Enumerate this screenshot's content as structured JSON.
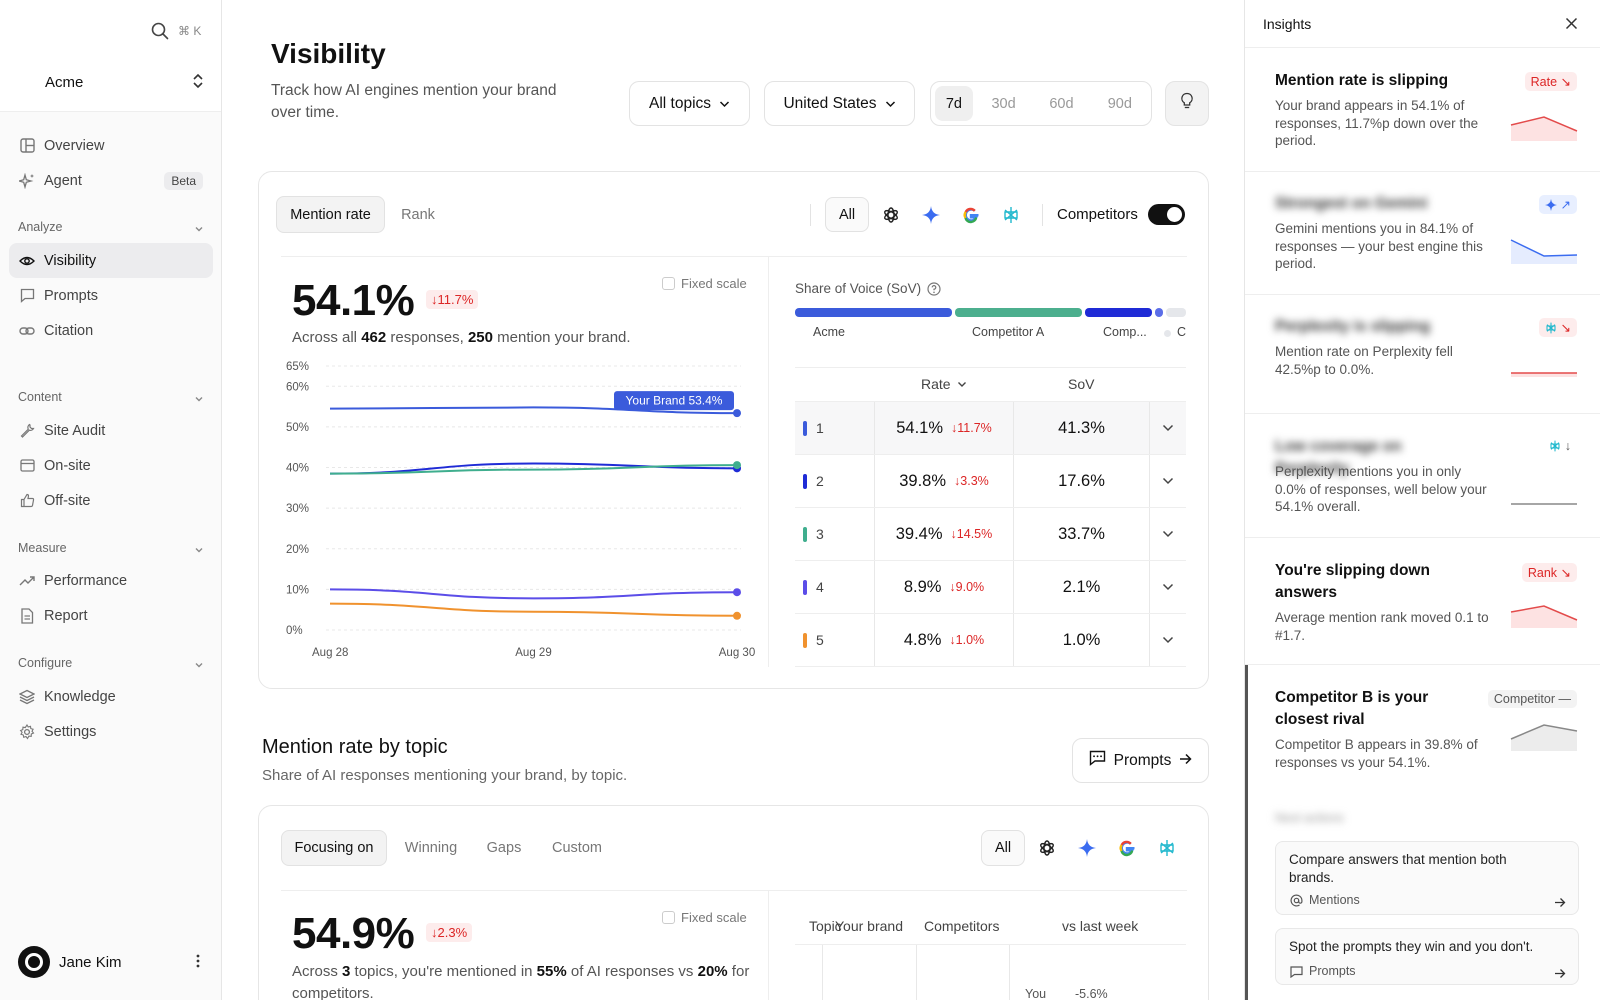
{
  "sidebar": {
    "search_shortcut": "⌘ K",
    "workspace": "Acme",
    "nav_top": [
      {
        "label": "Overview",
        "icon": "layout-icon"
      },
      {
        "label": "Agent",
        "icon": "sparkles-icon",
        "badge": "Beta"
      }
    ],
    "sections": [
      {
        "label": "Analyze",
        "items": [
          {
            "label": "Visibility",
            "icon": "eye-icon",
            "active": true
          },
          {
            "label": "Prompts",
            "icon": "message-icon"
          },
          {
            "label": "Citation",
            "icon": "link-icon"
          }
        ]
      },
      {
        "label": "Content",
        "items": [
          {
            "label": "Site Audit",
            "icon": "wrench-icon"
          },
          {
            "label": "On-site",
            "icon": "browser-icon"
          },
          {
            "label": "Off-site",
            "icon": "thumbs-up-icon"
          }
        ]
      },
      {
        "label": "Measure",
        "items": [
          {
            "label": "Performance",
            "icon": "trending-up-icon"
          },
          {
            "label": "Report",
            "icon": "file-icon"
          }
        ]
      },
      {
        "label": "Configure",
        "items": [
          {
            "label": "Knowledge",
            "icon": "layers-icon"
          },
          {
            "label": "Settings",
            "icon": "gear-icon"
          }
        ]
      }
    ],
    "user": "Jane Kim"
  },
  "header": {
    "title": "Visibility",
    "subtitle": "Track how AI engines mention your brand over time.",
    "topic_filter": "All topics",
    "country_filter": "United States",
    "ranges": [
      "7d",
      "30d",
      "60d",
      "90d"
    ],
    "active_range": "7d"
  },
  "visibility_card": {
    "tabs": [
      "Mention rate",
      "Rank"
    ],
    "active_tab": "Mention rate",
    "engine_all": "All",
    "engines": [
      "chatgpt-icon",
      "gemini-icon",
      "google-icon",
      "perplexity-icon"
    ],
    "competitors_label": "Competitors",
    "competitors_on": true,
    "big_value": "54.1%",
    "delta": "↓11.7%",
    "fixed_scale": "Fixed scale",
    "summary_pre": "Across all ",
    "summary_responses": "462",
    "summary_mid": " responses, ",
    "summary_mentions": "250",
    "summary_post": " mention your brand.",
    "tooltip": "Your Brand 53.4%",
    "sov_title": "Share of Voice (SoV)",
    "sov_labels": [
      "Acme",
      "Competitor A",
      "Comp...",
      "C"
    ],
    "table_headers": {
      "rate": "Rate",
      "sov": "SoV"
    },
    "rows": [
      {
        "rank": "1",
        "rate": "54.1%",
        "delta": "↓11.7%",
        "sov": "41.3%",
        "color": "#3b5bdb"
      },
      {
        "rank": "2",
        "rate": "39.8%",
        "delta": "↓3.3%",
        "sov": "17.6%",
        "color": "#1f2bd6"
      },
      {
        "rank": "3",
        "rate": "39.4%",
        "delta": "↓14.5%",
        "sov": "33.7%",
        "color": "#3fae8e"
      },
      {
        "rank": "4",
        "rate": "8.9%",
        "delta": "↓9.0%",
        "sov": "2.1%",
        "color": "#5b4de8"
      },
      {
        "rank": "5",
        "rate": "4.8%",
        "delta": "↓1.0%",
        "sov": "1.0%",
        "color": "#f0922e"
      }
    ]
  },
  "chart_data": {
    "type": "line",
    "x": [
      "Aug 28",
      "Aug 29",
      "Aug 30"
    ],
    "yticks": [
      "0%",
      "10%",
      "20%",
      "30%",
      "40%",
      "50%",
      "60%",
      "65%"
    ],
    "ylim": [
      0,
      65
    ],
    "series": [
      {
        "values": [
          54.5,
          54.8,
          53.4
        ],
        "color": "#3b5bdb"
      },
      {
        "values": [
          38.5,
          41.0,
          39.8
        ],
        "color": "#1f2bd6"
      },
      {
        "values": [
          38.5,
          39.5,
          40.6
        ],
        "color": "#3fae8e"
      },
      {
        "values": [
          10.0,
          7.8,
          9.3
        ],
        "color": "#5b4de8"
      },
      {
        "values": [
          6.5,
          4.5,
          3.5
        ],
        "color": "#f0922e"
      }
    ],
    "sov": [
      {
        "name": "Acme",
        "value": 41.3,
        "color": "#3b5bdb"
      },
      {
        "name": "Competitor A",
        "value": 33.7,
        "color": "#4caf8e"
      },
      {
        "name": "Comp...",
        "value": 17.6,
        "color": "#1f2bd6"
      },
      {
        "name": "C",
        "value": 2.1,
        "color": "#5b6ee8"
      },
      {
        "name": "",
        "value": 5.3,
        "color": "#e5e7eb"
      }
    ]
  },
  "topic_section": {
    "title": "Mention rate by topic",
    "subtitle": "Share of AI responses mentioning your brand, by topic.",
    "prompts_button": "Prompts",
    "tabs": [
      "Focusing on",
      "Winning",
      "Gaps",
      "Custom"
    ],
    "active_tab": "Focusing on",
    "engine_all": "All",
    "big_value": "54.9%",
    "delta": "↓2.3%",
    "fixed_scale": "Fixed scale",
    "summary": [
      "Across ",
      "3",
      " topics, you're mentioned in ",
      "55%",
      " of AI responses vs ",
      "20%",
      " for competitors."
    ],
    "table_headers": [
      "Topic",
      "Your brand",
      "Competitors",
      "vs last week"
    ],
    "partial_row": {
      "you": "You",
      "change": "-5.6%"
    }
  },
  "insights": {
    "title": "Insights",
    "cards": [
      {
        "title": "Mention rate is slipping",
        "body": "Your brand appears in 54.1% of responses, 11.7%p down over the period.",
        "tag": "Rate ↘"
      },
      {
        "title": "Strongest on Gemini",
        "body": "Gemini mentions you in 84.1% of responses — your best engine this period.",
        "tag": "↗"
      },
      {
        "title": "Perplexity is slipping",
        "body": "Mention rate on Perplexity fell 42.5%p to 0.0%.",
        "tag": "↘"
      },
      {
        "title": "Low coverage on Perplexity",
        "body": "Perplexity mentions you in only 0.0% of responses, well below your 54.1% overall.",
        "tag": "↓"
      },
      {
        "title": "You're slipping down answers",
        "body": "Average mention rank moved 0.1 to #1.7.",
        "tag": "Rank ↘"
      },
      {
        "title": "Competitor B is your closest rival",
        "body": "Competitor B appears in 39.8% of responses vs your 54.1%.",
        "tag": "Competitor —"
      }
    ],
    "next_label": "Next actions",
    "actions": [
      {
        "text": "Compare answers that mention both brands.",
        "sub": "Mentions"
      },
      {
        "text": "Spot the prompts they win and you don't.",
        "sub": "Prompts"
      }
    ]
  }
}
